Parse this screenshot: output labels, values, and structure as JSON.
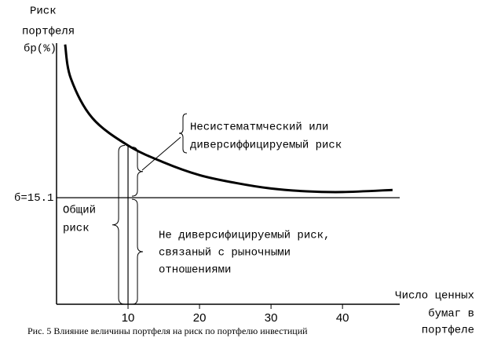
{
  "chart_data": {
    "type": "line",
    "ylabel": [
      "Риск",
      "портфеля",
      "бр(%)"
    ],
    "xlabel": [
      "Число ценных",
      "бумаг в",
      "портфеле"
    ],
    "caption": "Рис. 5  Влияние величины портфеля на риск по портфелю инвестиций",
    "x": [
      1.2,
      2,
      5,
      10,
      15,
      20,
      25,
      30,
      35,
      40,
      47
    ],
    "series": [
      {
        "color": "#000000",
        "values": [
          36.8,
          32,
          26.4,
          22.5,
          20.1,
          18.3,
          17.2,
          16.4,
          16.0,
          15.9,
          16.2
        ]
      }
    ],
    "xlim": [
      0,
      48
    ],
    "ylim": [
      0,
      37
    ],
    "xticks": [
      10,
      20,
      30,
      40
    ],
    "reference_y": {
      "value": 15.1,
      "label": "б=15.1"
    },
    "reference_x": 10,
    "annotations": {
      "diversifiable": [
        "Несистематмческий или",
        "диверсиффицируемый риск"
      ],
      "market": [
        "Не диверсифицируемый риск,",
        "связаный с рыночными",
        "отношениями"
      ],
      "total": [
        "Общий",
        "риск"
      ]
    }
  }
}
